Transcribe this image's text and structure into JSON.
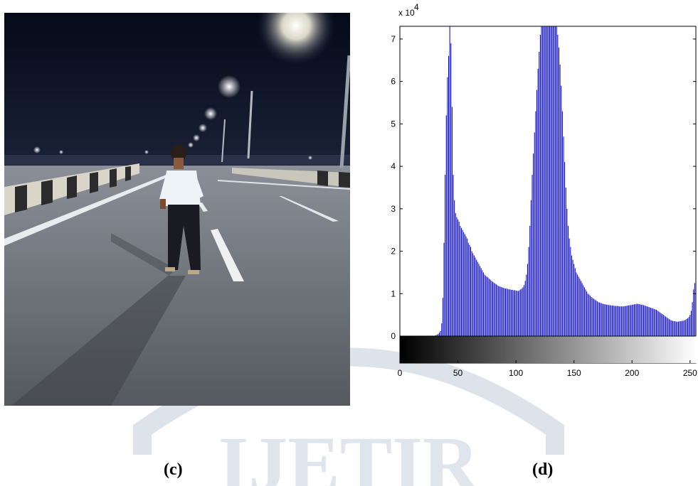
{
  "captions": {
    "left": "(c)",
    "right": "(d)"
  },
  "watermark": {
    "text": "IJETIR"
  },
  "photo": {
    "icon": "night-road-portrait-photo"
  },
  "chart_data": {
    "type": "bar",
    "title": "",
    "xlabel": "",
    "ylabel": "",
    "x_ticks": [
      0,
      50,
      100,
      150,
      200,
      250
    ],
    "y_ticks": [
      0,
      1,
      2,
      3,
      4,
      5,
      6,
      7
    ],
    "y_multiplier_label": "x 10",
    "y_multiplier_exponent": "4",
    "xlim": [
      0,
      255
    ],
    "ylim": [
      0,
      7.3
    ],
    "grid": false,
    "bar_color": "#0000cc",
    "colorbar": "grayscale 0-255 beneath x axis",
    "series": [
      {
        "values": [
          0,
          0,
          0,
          0,
          0,
          0,
          0,
          0,
          0,
          0,
          0,
          0,
          0,
          0,
          0,
          0,
          0,
          0,
          0,
          0,
          0,
          0,
          0,
          0,
          0,
          0,
          0,
          0,
          0,
          0,
          0.01,
          0.02,
          0.03,
          0.05,
          0.08,
          0.12,
          0.3,
          0.9,
          2.2,
          3.8,
          5.2,
          6.1,
          6.6,
          7.3,
          6.9,
          5.4,
          3.8,
          3.2,
          2.9,
          2.8,
          2.75,
          2.7,
          2.6,
          2.55,
          2.5,
          2.45,
          2.4,
          2.35,
          2.3,
          2.2,
          2.15,
          2.1,
          2.0,
          1.95,
          1.9,
          1.85,
          1.8,
          1.75,
          1.7,
          1.65,
          1.6,
          1.55,
          1.5,
          1.45,
          1.42,
          1.4,
          1.38,
          1.35,
          1.33,
          1.3,
          1.28,
          1.26,
          1.24,
          1.22,
          1.2,
          1.18,
          1.17,
          1.16,
          1.15,
          1.14,
          1.13,
          1.12,
          1.12,
          1.11,
          1.1,
          1.1,
          1.09,
          1.09,
          1.08,
          1.08,
          1.07,
          1.07,
          1.06,
          1.08,
          1.1,
          1.12,
          1.15,
          1.2,
          1.3,
          1.45,
          1.7,
          2.1,
          2.6,
          3.2,
          3.8,
          4.3,
          4.8,
          5.3,
          5.8,
          6.3,
          6.7,
          7.1,
          7.3,
          7.3,
          7.3,
          7.3,
          7.3,
          7.3,
          7.3,
          7.3,
          7.3,
          7.3,
          7.3,
          7.3,
          7.3,
          7.3,
          7.1,
          6.8,
          6.4,
          5.9,
          5.3,
          4.7,
          4.1,
          3.5,
          3.0,
          2.6,
          2.3,
          2.1,
          1.9,
          1.8,
          1.7,
          1.6,
          1.5,
          1.45,
          1.4,
          1.35,
          1.3,
          1.25,
          1.2,
          1.15,
          1.1,
          1.05,
          1.0,
          0.98,
          0.95,
          0.92,
          0.9,
          0.88,
          0.86,
          0.84,
          0.82,
          0.8,
          0.79,
          0.78,
          0.77,
          0.76,
          0.75,
          0.75,
          0.74,
          0.74,
          0.73,
          0.73,
          0.72,
          0.72,
          0.72,
          0.71,
          0.71,
          0.71,
          0.71,
          0.7,
          0.7,
          0.7,
          0.7,
          0.7,
          0.71,
          0.71,
          0.72,
          0.72,
          0.73,
          0.73,
          0.74,
          0.74,
          0.75,
          0.75,
          0.76,
          0.76,
          0.75,
          0.75,
          0.74,
          0.74,
          0.73,
          0.72,
          0.71,
          0.7,
          0.69,
          0.68,
          0.67,
          0.66,
          0.65,
          0.64,
          0.63,
          0.62,
          0.6,
          0.58,
          0.56,
          0.54,
          0.52,
          0.5,
          0.48,
          0.46,
          0.44,
          0.42,
          0.4,
          0.38,
          0.37,
          0.36,
          0.35,
          0.35,
          0.34,
          0.34,
          0.34,
          0.35,
          0.35,
          0.36,
          0.36,
          0.37,
          0.38,
          0.4,
          0.42,
          0.45,
          0.5,
          0.6,
          0.8,
          1.1,
          1.25
        ]
      }
    ]
  }
}
